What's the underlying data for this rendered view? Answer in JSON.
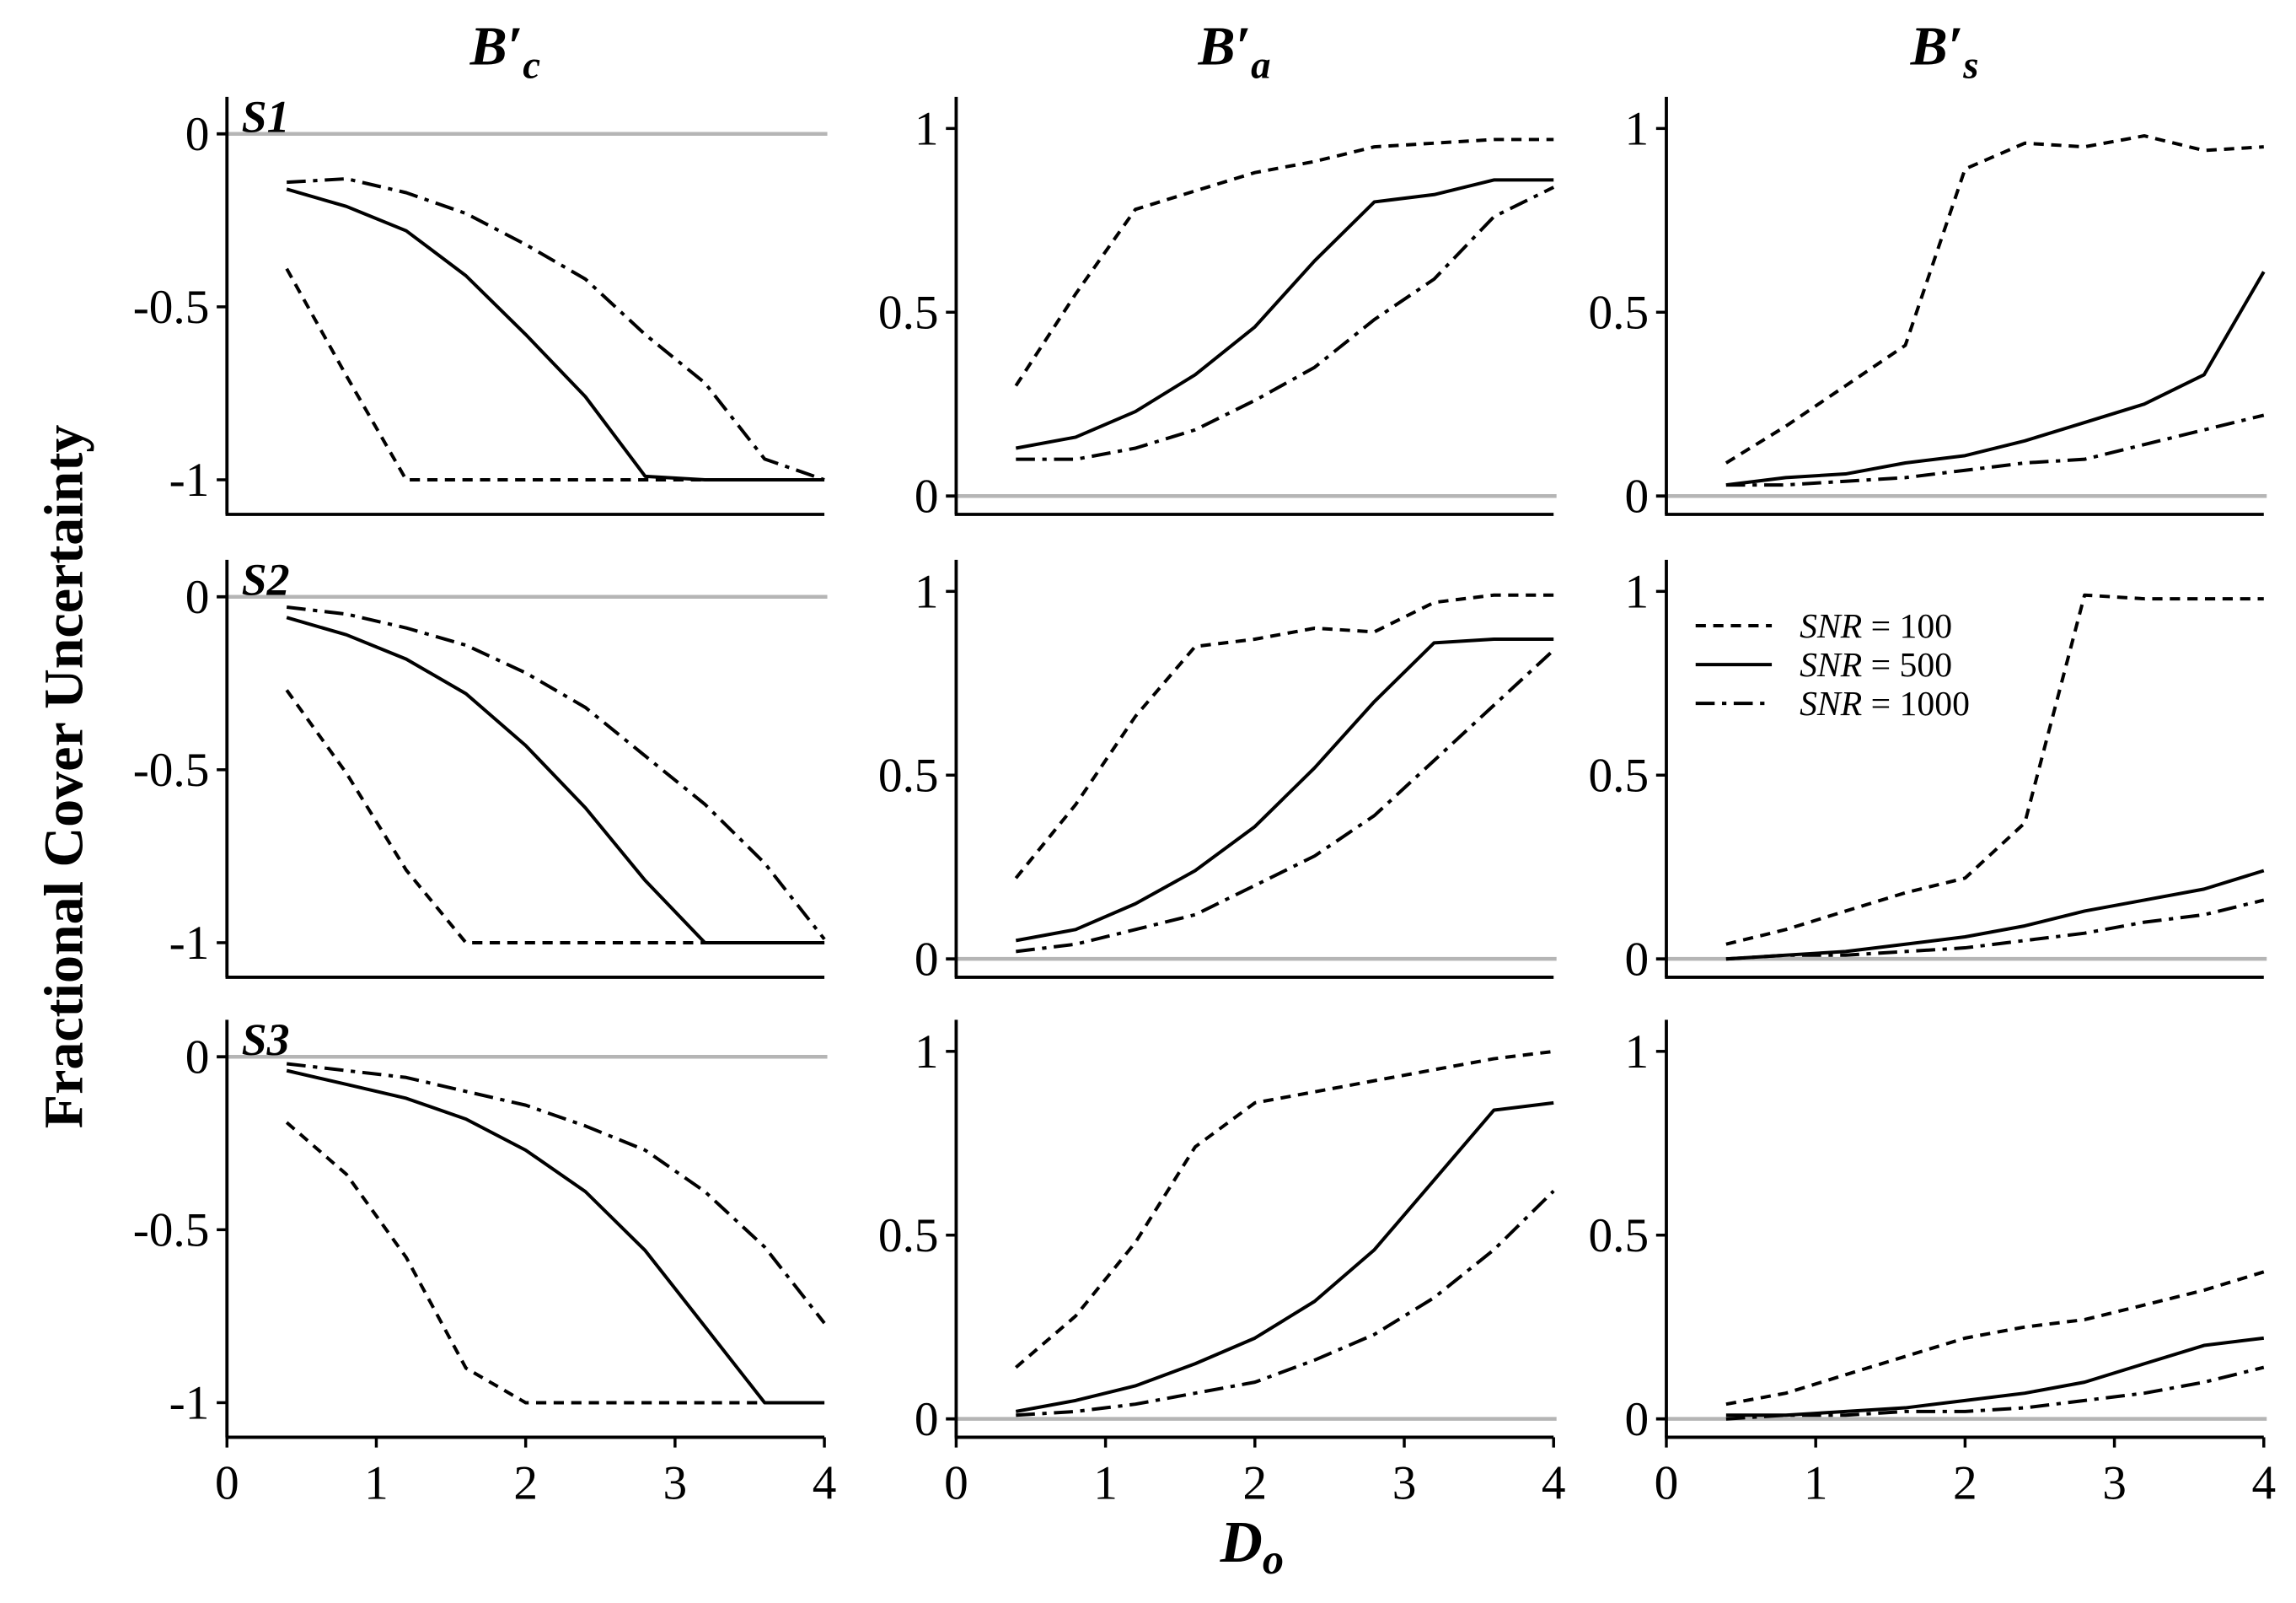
{
  "chart_data": {
    "type": "line",
    "ylabel": "Fractional Cover Uncertainty",
    "xlabel": {
      "main": "D",
      "sub": "o"
    },
    "xlim": [
      0,
      4
    ],
    "x": [
      0.4,
      0.8,
      1.2,
      1.6,
      2.0,
      2.4,
      2.8,
      3.2,
      3.6,
      4.0
    ],
    "xticks": [
      {
        "value": 0,
        "label": "0"
      },
      {
        "value": 1,
        "label": "1"
      },
      {
        "value": 2,
        "label": "2"
      },
      {
        "value": 3,
        "label": "3"
      },
      {
        "value": 4,
        "label": "4"
      }
    ],
    "columns": [
      {
        "title_main": "B′",
        "title_sub": "c",
        "ylim": [
          -1.1,
          0.09
        ],
        "yticks": [
          {
            "value": 0,
            "label": "0"
          },
          {
            "value": -0.5,
            "label": "-0.5"
          },
          {
            "value": -1,
            "label": "-1"
          }
        ]
      },
      {
        "title_main": "B′",
        "title_sub": "a",
        "ylim": [
          -0.05,
          1.07
        ],
        "yticks": [
          {
            "value": 1,
            "label": "1"
          },
          {
            "value": 0.5,
            "label": "0.5"
          },
          {
            "value": 0,
            "label": "0"
          }
        ]
      },
      {
        "title_main": "B′",
        "title_sub": "s",
        "ylim": [
          -0.05,
          1.07
        ],
        "yticks": [
          {
            "value": 1,
            "label": "1"
          },
          {
            "value": 0.5,
            "label": "0.5"
          },
          {
            "value": 0,
            "label": "0"
          }
        ]
      }
    ],
    "rows": [
      {
        "label": "S1"
      },
      {
        "label": "S2"
      },
      {
        "label": "S3"
      }
    ],
    "legend": {
      "placement": "top-left",
      "row": 1,
      "col": 2,
      "entries": [
        {
          "name": "SNR",
          "value": " = 100"
        },
        {
          "name": "SNR",
          "value": " = 500"
        },
        {
          "name": "SNR",
          "value": " = 1000"
        }
      ]
    },
    "panels": [
      {
        "row": 0,
        "col": 0,
        "series": [
          {
            "values": [
              -0.39,
              -0.7,
              -1.0,
              -1.0,
              -1.0,
              -1.0,
              -1.0,
              -1.0,
              -1.0,
              -1.0
            ]
          },
          {
            "values": [
              -0.16,
              -0.21,
              -0.28,
              -0.41,
              -0.58,
              -0.76,
              -0.99,
              -1.0,
              -1.0,
              -1.0
            ]
          },
          {
            "values": [
              -0.14,
              -0.13,
              -0.17,
              -0.23,
              -0.32,
              -0.42,
              -0.58,
              -0.72,
              -0.94,
              -1.0
            ]
          }
        ]
      },
      {
        "row": 0,
        "col": 1,
        "series": [
          {
            "values": [
              0.3,
              0.55,
              0.78,
              0.83,
              0.88,
              0.91,
              0.95,
              0.96,
              0.97,
              0.97
            ]
          },
          {
            "values": [
              0.13,
              0.16,
              0.23,
              0.33,
              0.46,
              0.64,
              0.8,
              0.82,
              0.86,
              0.86
            ]
          },
          {
            "values": [
              0.1,
              0.1,
              0.13,
              0.18,
              0.26,
              0.35,
              0.48,
              0.59,
              0.76,
              0.84
            ]
          }
        ]
      },
      {
        "row": 0,
        "col": 2,
        "series": [
          {
            "values": [
              0.09,
              0.19,
              0.3,
              0.41,
              0.89,
              0.96,
              0.95,
              0.98,
              0.94,
              0.95
            ]
          },
          {
            "values": [
              0.03,
              0.05,
              0.06,
              0.09,
              0.11,
              0.15,
              0.2,
              0.25,
              0.33,
              0.61
            ]
          },
          {
            "values": [
              0.03,
              0.03,
              0.04,
              0.05,
              0.07,
              0.09,
              0.1,
              0.14,
              0.18,
              0.22
            ]
          }
        ]
      },
      {
        "row": 1,
        "col": 0,
        "series": [
          {
            "values": [
              -0.27,
              -0.51,
              -0.79,
              -1.0,
              -1.0,
              -1.0,
              -1.0,
              -1.0,
              -1.0,
              -1.0
            ]
          },
          {
            "values": [
              -0.06,
              -0.11,
              -0.18,
              -0.28,
              -0.43,
              -0.61,
              -0.82,
              -1.0,
              -1.0,
              -1.0
            ]
          },
          {
            "values": [
              -0.03,
              -0.05,
              -0.09,
              -0.14,
              -0.22,
              -0.32,
              -0.46,
              -0.6,
              -0.77,
              -0.99
            ]
          }
        ]
      },
      {
        "row": 1,
        "col": 1,
        "series": [
          {
            "values": [
              0.22,
              0.42,
              0.66,
              0.85,
              0.87,
              0.9,
              0.89,
              0.97,
              0.99,
              0.99
            ]
          },
          {
            "values": [
              0.05,
              0.08,
              0.15,
              0.24,
              0.36,
              0.52,
              0.7,
              0.86,
              0.87,
              0.87
            ]
          },
          {
            "values": [
              0.02,
              0.04,
              0.08,
              0.12,
              0.2,
              0.28,
              0.39,
              0.54,
              0.69,
              0.84
            ]
          }
        ]
      },
      {
        "row": 1,
        "col": 2,
        "series": [
          {
            "values": [
              0.04,
              0.08,
              0.13,
              0.18,
              0.22,
              0.37,
              0.99,
              0.98,
              0.98,
              0.98
            ]
          },
          {
            "values": [
              0.0,
              0.01,
              0.02,
              0.04,
              0.06,
              0.09,
              0.13,
              0.16,
              0.19,
              0.24
            ]
          },
          {
            "values": [
              0.0,
              0.01,
              0.01,
              0.02,
              0.03,
              0.05,
              0.07,
              0.1,
              0.12,
              0.16
            ]
          }
        ]
      },
      {
        "row": 2,
        "col": 0,
        "series": [
          {
            "values": [
              -0.19,
              -0.34,
              -0.58,
              -0.9,
              -1.0,
              -1.0,
              -1.0,
              -1.0,
              -1.0,
              -1.0
            ]
          },
          {
            "values": [
              -0.04,
              -0.08,
              -0.12,
              -0.18,
              -0.27,
              -0.39,
              -0.56,
              -0.78,
              -1.0,
              -1.0
            ]
          },
          {
            "values": [
              -0.02,
              -0.04,
              -0.06,
              -0.1,
              -0.14,
              -0.2,
              -0.27,
              -0.39,
              -0.55,
              -0.77
            ]
          }
        ]
      },
      {
        "row": 2,
        "col": 1,
        "series": [
          {
            "values": [
              0.14,
              0.28,
              0.48,
              0.74,
              0.86,
              0.89,
              0.92,
              0.95,
              0.98,
              1.0
            ]
          },
          {
            "values": [
              0.02,
              0.05,
              0.09,
              0.15,
              0.22,
              0.32,
              0.46,
              0.65,
              0.84,
              0.86
            ]
          },
          {
            "values": [
              0.01,
              0.02,
              0.04,
              0.07,
              0.1,
              0.16,
              0.23,
              0.33,
              0.46,
              0.62
            ]
          }
        ]
      },
      {
        "row": 2,
        "col": 2,
        "series": [
          {
            "values": [
              0.04,
              0.07,
              0.12,
              0.17,
              0.22,
              0.25,
              0.27,
              0.31,
              0.35,
              0.4
            ]
          },
          {
            "values": [
              0.01,
              0.01,
              0.02,
              0.03,
              0.05,
              0.07,
              0.1,
              0.15,
              0.2,
              0.22
            ]
          },
          {
            "values": [
              0.0,
              0.01,
              0.01,
              0.02,
              0.02,
              0.03,
              0.05,
              0.07,
              0.1,
              0.14
            ]
          }
        ]
      }
    ]
  }
}
